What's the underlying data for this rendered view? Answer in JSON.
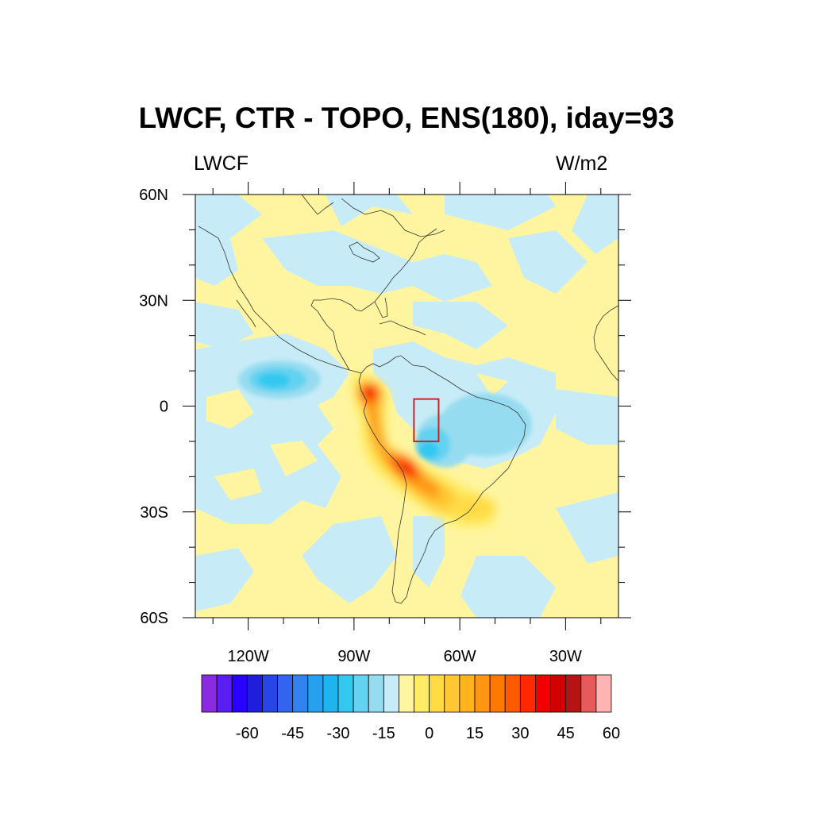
{
  "title": "LWCF, CTR - TOPO, ENS(180), iday=93",
  "subtitle_left": "LWCF",
  "subtitle_right": "W/m2",
  "map": {
    "lon_range": [
      -135,
      -15
    ],
    "lat_range": [
      -60,
      60
    ],
    "lat_ticks": [
      "60N",
      "30N",
      "0",
      "30S",
      "60S"
    ],
    "lat_values": [
      60,
      30,
      0,
      -30,
      -60
    ],
    "lon_ticks": [
      "120W",
      "90W",
      "60W",
      "30W"
    ],
    "lon_values": [
      -120,
      -90,
      -60,
      -30
    ],
    "box_region": {
      "lon": [
        -73,
        -66
      ],
      "lat": [
        -10,
        2
      ],
      "color": "#d21e28"
    }
  },
  "colorbar": {
    "labels": [
      "-60",
      "-45",
      "-30",
      "-15",
      "0",
      "15",
      "30",
      "45",
      "60"
    ],
    "label_values": [
      -60,
      -45,
      -30,
      -15,
      0,
      15,
      30,
      45,
      60
    ],
    "interval": 5,
    "min": -75,
    "max": 75,
    "colors": [
      "#8a2be2",
      "#5a1ef0",
      "#2a00ff",
      "#1e1edc",
      "#2846e6",
      "#3264f0",
      "#3282f0",
      "#28a0f0",
      "#1eb4f0",
      "#32c8f0",
      "#64d2f0",
      "#96dcf0",
      "#c8ecf7",
      "#fff5a0",
      "#ffec64",
      "#ffdc46",
      "#ffc832",
      "#ffb41e",
      "#ff9614",
      "#ff7800",
      "#ff5a00",
      "#ff2800",
      "#f00000",
      "#d20000",
      "#b41414",
      "#e65a5a",
      "#ffb4b4"
    ]
  }
}
